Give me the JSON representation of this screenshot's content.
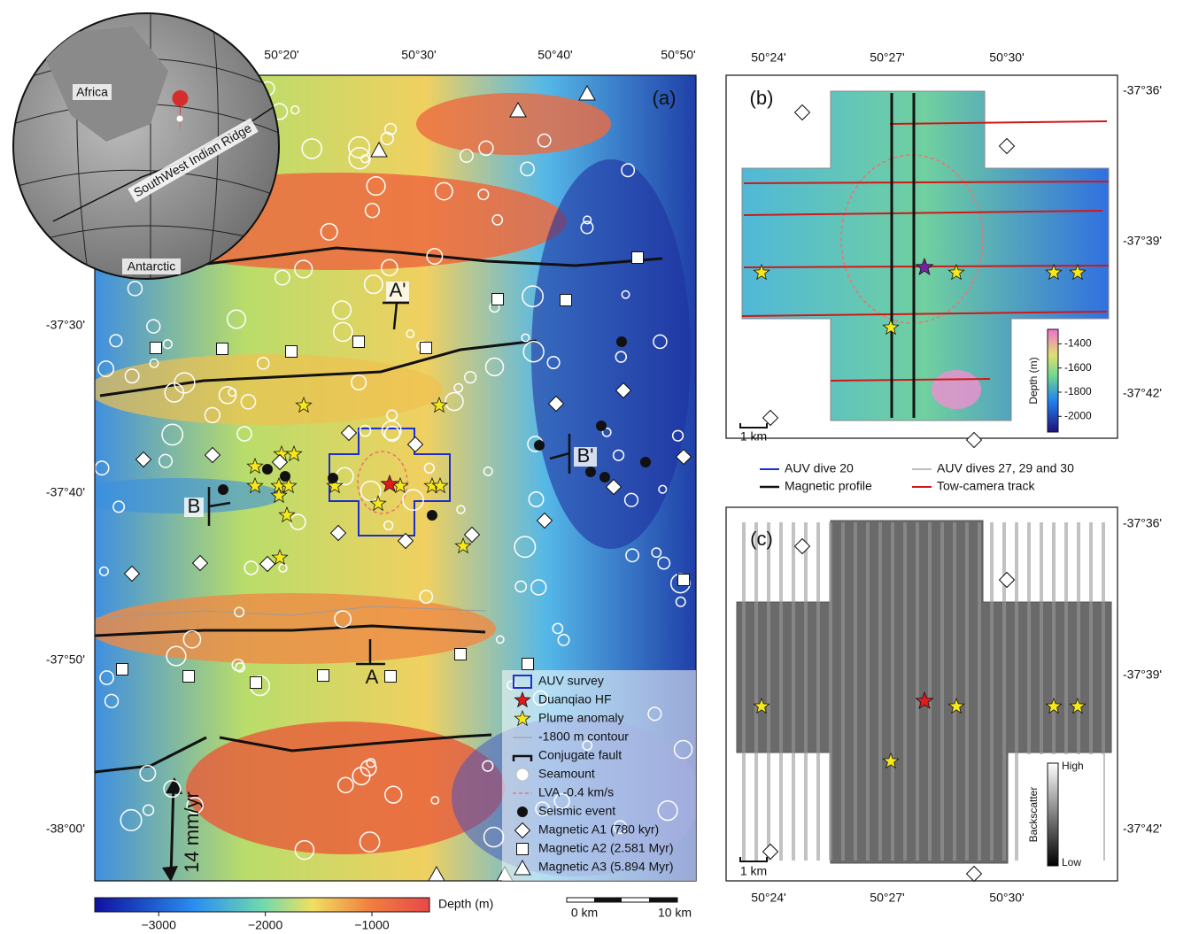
{
  "panel_a": {
    "label": "(a)",
    "lon_ticks": [
      "50°20'",
      "50°30'",
      "50°40'",
      "50°50'"
    ],
    "lat_ticks": [
      "-37°30'",
      "-37°40'",
      "-37°50'",
      "-38°00'"
    ],
    "inset": {
      "labels": [
        "Africa",
        "SouthWest Indian Ridge",
        "Antarctic"
      ]
    },
    "profiles": [
      "A'",
      "A",
      "B",
      "B'"
    ],
    "spreading_rate": "14 mm/yr",
    "legend": [
      "AUV survey",
      "Duanqiao HF",
      "Plume anomaly",
      "-1800 m contour",
      "Conjugate fault",
      "Seamount",
      "LVA -0.4 km/s",
      "Seismic event",
      "Magnetic A1 (780 kyr)",
      "Magnetic A2 (2.581 Myr)",
      "Magnetic A3 (5.894 Myr)"
    ],
    "colorbar": {
      "title": "Depth (m)",
      "range": [
        -3600,
        -460
      ],
      "ticks": [
        {
          "value": -3000,
          "label": "−3000"
        },
        {
          "value": -2000,
          "label": "−2000"
        },
        {
          "value": -1000,
          "label": "−1000"
        }
      ]
    },
    "scale_bar": [
      "0 km",
      "10 km"
    ]
  },
  "panel_b": {
    "label": "(b)",
    "lon_ticks": [
      "50°24'",
      "50°27'",
      "50°30'"
    ],
    "lat_ticks": [
      "-37°36'",
      "-37°39'",
      "-37°42'"
    ],
    "scale_bar": "1 km",
    "colorbar": {
      "title": "Depth (m)",
      "range": [
        -2130,
        -1280
      ],
      "ticks": [
        -1400,
        -1600,
        -1800,
        -2000
      ]
    }
  },
  "legend_b": {
    "items": [
      "AUV dive 20",
      "AUV dives 27, 29 and 30",
      "Magnetic profile",
      "Tow-camera track"
    ]
  },
  "panel_c": {
    "label": "(c)",
    "lon_ticks": [
      "50°24'",
      "50°27'",
      "50°30'"
    ],
    "lat_ticks": [
      "-37°36'",
      "-37°39'",
      "-37°42'"
    ],
    "scale_bar": "1 km",
    "colorbar": {
      "title": "Backscatter",
      "high": "High",
      "low": "Low"
    }
  }
}
